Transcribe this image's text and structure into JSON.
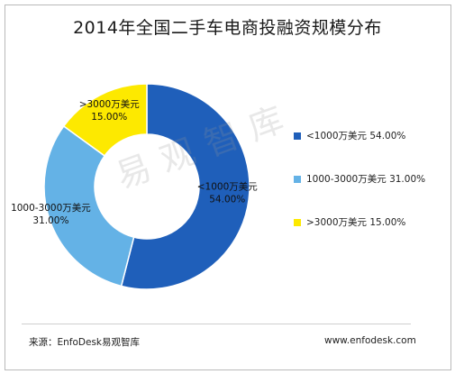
{
  "chart_data": {
    "type": "pie",
    "donut": true,
    "title": "2014年全国二手车电商投融资规模分布",
    "slices": [
      {
        "label": "<1000万美元",
        "value": 54.0,
        "value_label": "54.00%",
        "color": "#1f5fba"
      },
      {
        "label": "1000-3000万美元",
        "value": 31.0,
        "value_label": "31.00%",
        "color": "#64b2e6"
      },
      {
        "label": ">3000万美元",
        "value": 15.0,
        "value_label": "15.00%",
        "color": "#fde900"
      }
    ],
    "legend": [
      "<1000万美元  54.00%",
      "1000-3000万美元  31.00%",
      ">3000万美元  15.00%"
    ],
    "legend_position": "right",
    "watermark": "易观智库"
  },
  "footer": {
    "source": "来源：EnfoDesk易观智库",
    "website": "www.enfodesk.com"
  }
}
